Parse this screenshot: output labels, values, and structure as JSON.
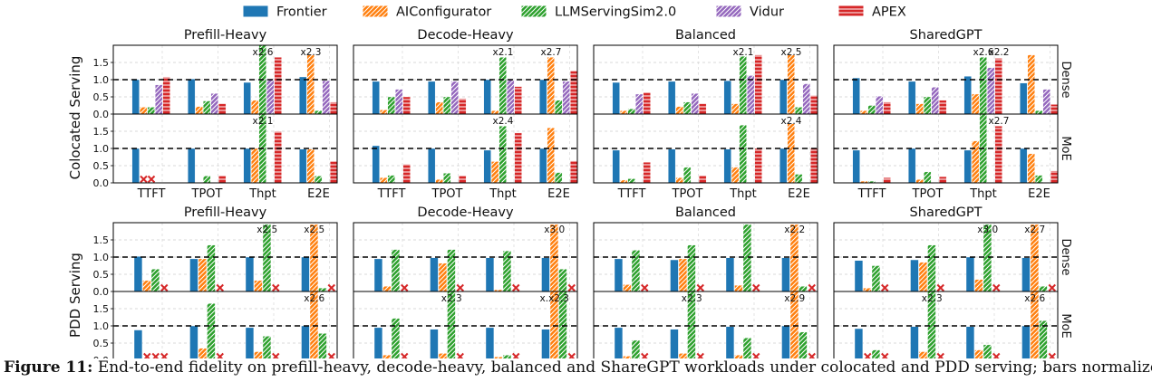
{
  "chart_data": {
    "type": "bar",
    "legend": {
      "placement": "top",
      "entries": [
        "Frontier",
        "AIConfigurator",
        "LLMServingSim2.0",
        "Vidur",
        "APEX"
      ]
    },
    "colors": {
      "Frontier": "#1f77b4",
      "AIConfigurator": "#ff7f0e",
      "LLMServingSim2.0": "#2ca02c",
      "Vidur": "#9467bd",
      "APEX": "#d62728",
      "unsupported_marker": "#d62728"
    },
    "categories": [
      "TTFT",
      "TPOT",
      "Thpt",
      "E2E"
    ],
    "yticks": [
      "0.0",
      "0.5",
      "1.0",
      "1.5"
    ],
    "ylim": [
      0,
      2.0
    ],
    "reference_line": 1.0,
    "grid": true,
    "unsupported_marker": "x",
    "workloads": [
      "Prefill-Heavy",
      "Decode-Heavy",
      "Balanced",
      "SharedGPT"
    ],
    "groups": [
      {
        "label": "Colocated Serving",
        "models": [
          "Dense",
          "MoE"
        ],
        "series": [
          "Frontier",
          "AIConfigurator",
          "LLMServingSim2.0",
          "Vidur",
          "APEX"
        ],
        "panels": [
          {
            "workload": "Prefill-Heavy",
            "model": "Dense",
            "values": [
              [
                1.0,
                0.2,
                0.2,
                0.85,
                1.08
              ],
              [
                1.02,
                0.22,
                0.38,
                0.6,
                0.3
              ],
              [
                0.92,
                0.4,
                2.0,
                1.02,
                1.65
              ],
              [
                1.08,
                1.72,
                0.1,
                0.97,
                0.35
              ]
            ],
            "annotations": [
              {
                "category": "Thpt",
                "series": "LLMServingSim2.0",
                "text": "x2.6"
              },
              {
                "category": "E2E",
                "series": "AIConfigurator",
                "text": "x2.3"
              }
            ]
          },
          {
            "workload": "Decode-Heavy",
            "model": "Dense",
            "values": [
              [
                0.95,
                0.12,
                0.5,
                0.72,
                0.5
              ],
              [
                0.95,
                0.35,
                0.5,
                0.95,
                0.45
              ],
              [
                1.0,
                0.1,
                1.65,
                1.0,
                0.8
              ],
              [
                1.0,
                1.65,
                0.4,
                0.95,
                1.25
              ]
            ],
            "annotations": [
              {
                "category": "Thpt",
                "series": "LLMServingSim2.0",
                "text": "x2.1"
              },
              {
                "category": "E2E",
                "series": "AIConfigurator",
                "text": "x2.7"
              }
            ]
          },
          {
            "workload": "Balanced",
            "model": "Dense",
            "values": [
              [
                0.92,
                0.1,
                0.15,
                0.58,
                0.62
              ],
              [
                0.95,
                0.22,
                0.35,
                0.6,
                0.3
              ],
              [
                0.97,
                0.3,
                1.68,
                1.12,
                1.72
              ],
              [
                1.0,
                1.72,
                0.2,
                0.88,
                0.55
              ]
            ],
            "annotations": [
              {
                "category": "Thpt",
                "series": "LLMServingSim2.0",
                "text": "x2.1"
              },
              {
                "category": "E2E",
                "series": "AIConfigurator",
                "text": "x2.5"
              }
            ]
          },
          {
            "workload": "SharedGPT",
            "model": "Dense",
            "values": [
              [
                1.05,
                0.1,
                0.25,
                0.52,
                0.35
              ],
              [
                0.95,
                0.3,
                0.5,
                0.78,
                0.4
              ],
              [
                1.1,
                0.58,
                1.65,
                1.35,
                1.62
              ],
              [
                0.9,
                1.72,
                0.1,
                0.72,
                0.28
              ]
            ],
            "annotations": [
              {
                "category": "Thpt",
                "series": "LLMServingSim2.0",
                "text": "x2.6"
              },
              {
                "category": "Thpt",
                "series": "APEX",
                "text": "x2.2"
              }
            ]
          },
          {
            "workload": "Prefill-Heavy",
            "model": "MoE",
            "values": [
              [
                1.0,
                0.0,
                0.0,
                null,
                0.0
              ],
              [
                1.0,
                0.0,
                0.2,
                null,
                0.2
              ],
              [
                1.0,
                1.0,
                2.0,
                null,
                1.5
              ],
              [
                0.98,
                0.98,
                0.2,
                null,
                0.62
              ]
            ],
            "unsupported": [
              [
                1,
                2,
                3
              ],
              [
                3
              ],
              [
                3
              ],
              [
                3
              ]
            ],
            "annotations": [
              {
                "category": "Thpt",
                "series": "LLMServingSim2.0",
                "text": "x2.1"
              }
            ]
          },
          {
            "workload": "Decode-Heavy",
            "model": "MoE",
            "values": [
              [
                1.08,
                0.15,
                0.22,
                null,
                0.55
              ],
              [
                1.0,
                0.1,
                0.28,
                null,
                0.2
              ],
              [
                0.95,
                0.62,
                1.65,
                null,
                1.45
              ],
              [
                1.0,
                1.6,
                0.3,
                null,
                0.65
              ]
            ],
            "unsupported": [
              [
                3
              ],
              [
                3
              ],
              [
                3
              ],
              [
                3
              ]
            ],
            "annotations": [
              {
                "category": "Thpt",
                "series": "LLMServingSim2.0",
                "text": "x2.4"
              }
            ]
          },
          {
            "workload": "Balanced",
            "model": "MoE",
            "values": [
              [
                0.95,
                0.08,
                0.12,
                null,
                0.6
              ],
              [
                0.98,
                0.15,
                0.45,
                null,
                0.22
              ],
              [
                0.98,
                0.45,
                1.68,
                null,
                1.0
              ],
              [
                1.0,
                1.72,
                0.25,
                null,
                1.0
              ]
            ],
            "unsupported": [
              [
                3
              ],
              [
                3
              ],
              [
                3
              ],
              [
                3
              ]
            ],
            "annotations": [
              {
                "category": "E2E",
                "series": "AIConfigurator",
                "text": "x2.4"
              }
            ]
          },
          {
            "workload": "SharedGPT",
            "model": "MoE",
            "values": [
              [
                0.95,
                0.05,
                0.05,
                null,
                0.15
              ],
              [
                1.0,
                0.1,
                0.32,
                null,
                0.18
              ],
              [
                0.95,
                1.22,
                2.0,
                null,
                1.65
              ],
              [
                1.0,
                0.85,
                0.22,
                null,
                0.35
              ]
            ],
            "unsupported": [
              [
                3
              ],
              [
                3
              ],
              [
                3
              ],
              [
                3
              ]
            ],
            "annotations": [
              {
                "category": "Thpt",
                "series": "APEX",
                "text": "x2.7"
              }
            ]
          }
        ]
      },
      {
        "label": "PDD Serving",
        "models": [
          "Dense",
          "MoE"
        ],
        "series": [
          "Frontier",
          "AIConfigurator",
          "LLMServingSim2.0",
          "APEX"
        ],
        "panels": [
          {
            "workload": "Prefill-Heavy",
            "model": "Dense",
            "values": [
              [
                1.02,
                0.32,
                0.65,
                null
              ],
              [
                0.95,
                0.95,
                1.35,
                null
              ],
              [
                1.0,
                0.32,
                1.95,
                null
              ],
              [
                1.0,
                1.95,
                0.1,
                null
              ]
            ],
            "unsupported": [
              [
                3
              ],
              [
                3
              ],
              [
                3
              ],
              [
                3
              ]
            ],
            "annotations": [
              {
                "category": "Thpt",
                "series": "LLMServingSim2.0",
                "text": "x2.5"
              },
              {
                "category": "E2E",
                "series": "AIConfigurator",
                "text": "x2.5"
              }
            ]
          },
          {
            "workload": "Decode-Heavy",
            "model": "Dense",
            "values": [
              [
                0.95,
                0.15,
                1.22,
                null
              ],
              [
                0.98,
                0.82,
                1.22,
                null
              ],
              [
                0.98,
                0.05,
                1.18,
                null
              ],
              [
                0.98,
                1.95,
                0.65,
                null
              ]
            ],
            "unsupported": [
              [
                3
              ],
              [
                3
              ],
              [
                3
              ],
              [
                3
              ]
            ],
            "annotations": [
              {
                "category": "E2E",
                "series": "AIConfigurator",
                "text": "x3.0"
              }
            ]
          },
          {
            "workload": "Balanced",
            "model": "Dense",
            "values": [
              [
                0.95,
                0.2,
                1.2,
                null
              ],
              [
                0.92,
                0.95,
                1.35,
                null
              ],
              [
                0.98,
                0.18,
                1.95,
                null
              ],
              [
                0.98,
                1.95,
                0.15,
                null
              ]
            ],
            "unsupported": [
              [
                3
              ],
              [
                3
              ],
              [
                3
              ],
              [
                3
              ]
            ],
            "annotations": [
              {
                "category": "E2E",
                "series": "AIConfigurator",
                "text": "x2.2"
              }
            ]
          },
          {
            "workload": "SharedGPT",
            "model": "Dense",
            "values": [
              [
                0.9,
                0.1,
                0.75,
                null
              ],
              [
                0.92,
                0.85,
                1.35,
                null
              ],
              [
                1.0,
                0.35,
                1.95,
                null
              ],
              [
                0.98,
                1.95,
                0.15,
                null
              ]
            ],
            "unsupported": [
              [
                3
              ],
              [
                3
              ],
              [
                3
              ],
              [
                3
              ]
            ],
            "annotations": [
              {
                "category": "Thpt",
                "series": "LLMServingSim2.0",
                "text": "x3.0"
              },
              {
                "category": "E2E",
                "series": "AIConfigurator",
                "text": "x2.7"
              }
            ]
          },
          {
            "workload": "Prefill-Heavy",
            "model": "MoE",
            "values": [
              [
                0.88,
                0.0,
                0.0,
                null
              ],
              [
                1.0,
                0.35,
                1.65,
                null
              ],
              [
                0.95,
                0.25,
                0.7,
                null
              ],
              [
                1.0,
                2.0,
                0.78,
                null
              ]
            ],
            "unsupported": [
              [
                1,
                2,
                3
              ],
              [
                3
              ],
              [
                3
              ],
              [
                3
              ]
            ],
            "annotations": [
              {
                "category": "E2E",
                "series": "AIConfigurator",
                "text": "x2.6"
              }
            ]
          },
          {
            "workload": "Decode-Heavy",
            "model": "MoE",
            "values": [
              [
                0.95,
                0.15,
                1.22,
                null
              ],
              [
                0.9,
                0.2,
                2.0,
                null
              ],
              [
                0.95,
                0.1,
                0.15,
                null
              ],
              [
                0.9,
                2.0,
                2.0,
                null
              ]
            ],
            "unsupported": [
              [
                3
              ],
              [
                3
              ],
              [
                3
              ],
              [
                3
              ]
            ],
            "annotations": [
              {
                "category": "TPOT",
                "series": "LLMServingSim2.0",
                "text": "x2.3"
              },
              {
                "category": "E2E",
                "series": "AIConfigurator",
                "text": "x.x2.3"
              }
            ]
          },
          {
            "workload": "Balanced",
            "model": "MoE",
            "values": [
              [
                0.95,
                0.12,
                0.58,
                null
              ],
              [
                0.9,
                0.2,
                2.0,
                null
              ],
              [
                0.98,
                0.15,
                0.65,
                null
              ],
              [
                1.0,
                2.0,
                0.82,
                null
              ]
            ],
            "unsupported": [
              [
                3
              ],
              [
                3
              ],
              [
                3
              ],
              [
                3
              ]
            ],
            "annotations": [
              {
                "category": "TPOT",
                "series": "LLMServingSim2.0",
                "text": "x2.3"
              },
              {
                "category": "E2E",
                "series": "AIConfigurator",
                "text": "x2.9"
              }
            ]
          },
          {
            "workload": "SharedGPT",
            "model": "MoE",
            "values": [
              [
                0.92,
                0.0,
                0.3,
                null
              ],
              [
                0.98,
                0.25,
                2.0,
                null
              ],
              [
                0.98,
                0.3,
                0.45,
                null
              ],
              [
                1.0,
                2.0,
                1.15,
                null
              ]
            ],
            "unsupported": [
              [
                1,
                3
              ],
              [
                3
              ],
              [
                3
              ],
              [
                3
              ]
            ],
            "annotations": [
              {
                "category": "TPOT",
                "series": "LLMServingSim2.0",
                "text": "x2.3"
              },
              {
                "category": "E2E",
                "series": "AIConfigurator",
                "text": "x2.6"
              }
            ]
          }
        ]
      }
    ]
  },
  "caption": {
    "label": "Figure 11:",
    "text": "End-to-end fidelity on prefill-heavy, decode-heavy, balanced and ShareGPT workloads under colocated and PDD serving; bars normalized to real-hardware measurements."
  }
}
